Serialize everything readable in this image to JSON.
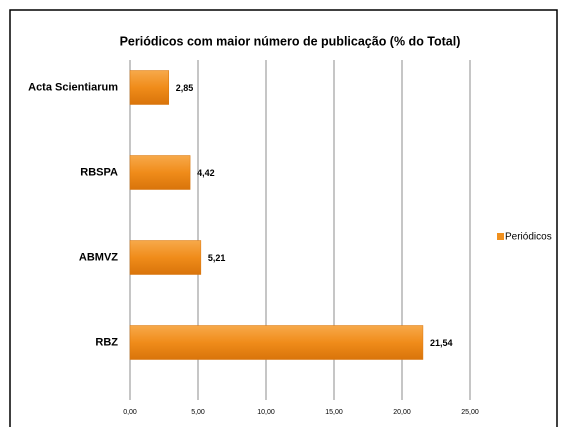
{
  "chart_data": {
    "type": "barh",
    "title": "Periódicos com maior número de publicação (% do Total)",
    "categories": [
      "Acta Scientiarum",
      "RBSPA",
      "ABMVZ",
      "RBZ"
    ],
    "series": [
      {
        "name": "Periódicos",
        "color": "#f0901e",
        "values": [
          2.85,
          4.42,
          5.21,
          21.54
        ],
        "value_labels": [
          "2,85",
          "4,42",
          "5,21",
          "21,54"
        ]
      }
    ],
    "xlim": [
      0,
      25
    ],
    "xticks": [
      {
        "value": 0,
        "label": "0,00"
      },
      {
        "value": 5,
        "label": "5,00"
      },
      {
        "value": 10,
        "label": "10,00"
      },
      {
        "value": 15,
        "label": "15,00"
      },
      {
        "value": 20,
        "label": "20,00"
      },
      {
        "value": 25,
        "label": "25,00"
      }
    ],
    "grid": true,
    "legend": "right"
  }
}
